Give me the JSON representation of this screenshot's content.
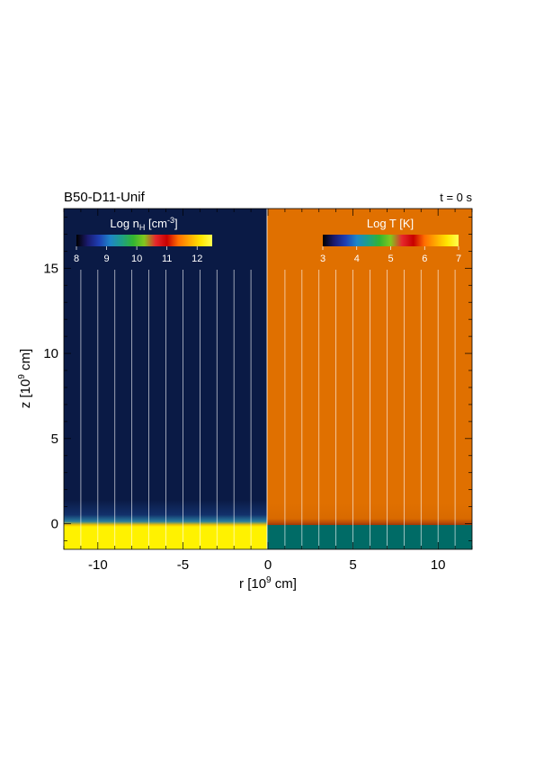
{
  "chart_data": {
    "type": "heatmap",
    "title": "B50-D11-Unif",
    "subtitle": "t = 0 s",
    "xlabel": {
      "main": "r [10",
      "sup": "9",
      "tail": " cm]"
    },
    "ylabel": {
      "main": "z [10",
      "sup": "9",
      "tail": " cm]"
    },
    "xlim": [
      -12,
      12
    ],
    "ylim": [
      -1.5,
      18.5
    ],
    "x_ticks": [
      -10,
      -5,
      0,
      5,
      10
    ],
    "x_tick_labels": [
      "-10",
      "-5",
      "0",
      "5",
      "10"
    ],
    "y_ticks": [
      0,
      5,
      10,
      15
    ],
    "y_tick_labels": [
      "0",
      "5",
      "10",
      "15"
    ],
    "x_minor_step": 1,
    "y_minor_step": 1,
    "grid": false,
    "interface_z": 0,
    "left_panel": {
      "quantity": "hydrogen number density",
      "colorbar": {
        "label": {
          "main": "Log n",
          "sub": "H",
          "mid": " [cm",
          "sup": "-3",
          "tail": "]"
        },
        "range": [
          8,
          12.5
        ],
        "ticks": [
          "8",
          "9",
          "10",
          "11",
          "12"
        ],
        "tick_values": [
          8,
          9,
          10,
          11,
          12
        ],
        "colormap": "rainbow-black-to-yellow"
      },
      "log_value_above_interface": 8.1,
      "log_value_below_interface": 12.5,
      "color_above": "#0a1a45",
      "color_below": "#fff200",
      "field_line_r": [
        -11,
        -10,
        -9,
        -8,
        -7,
        -6,
        -5,
        -4,
        -3,
        -2,
        -1
      ]
    },
    "right_panel": {
      "quantity": "temperature",
      "colorbar": {
        "label": {
          "main": "Log T [K]"
        },
        "range": [
          3,
          7
        ],
        "ticks": [
          "3",
          "4",
          "5",
          "6",
          "7"
        ],
        "tick_values": [
          3,
          4,
          5,
          6,
          7
        ],
        "colormap": "rainbow-black-to-yellow"
      },
      "log_value_above_interface": 6.0,
      "log_value_below_interface": 3.7,
      "color_above": "#e07000",
      "color_below": "#006b66",
      "field_line_r": [
        1,
        2,
        3,
        4,
        5,
        6,
        7,
        8,
        9,
        10,
        11
      ]
    },
    "colormap_stops": [
      "#000000",
      "#1a1a6e",
      "#1e3fb4",
      "#1e86c8",
      "#1ea088",
      "#32b432",
      "#82c81e",
      "#e6282d",
      "#c80000",
      "#ff6e00",
      "#ffaa00",
      "#ffe600",
      "#ffff50"
    ]
  }
}
